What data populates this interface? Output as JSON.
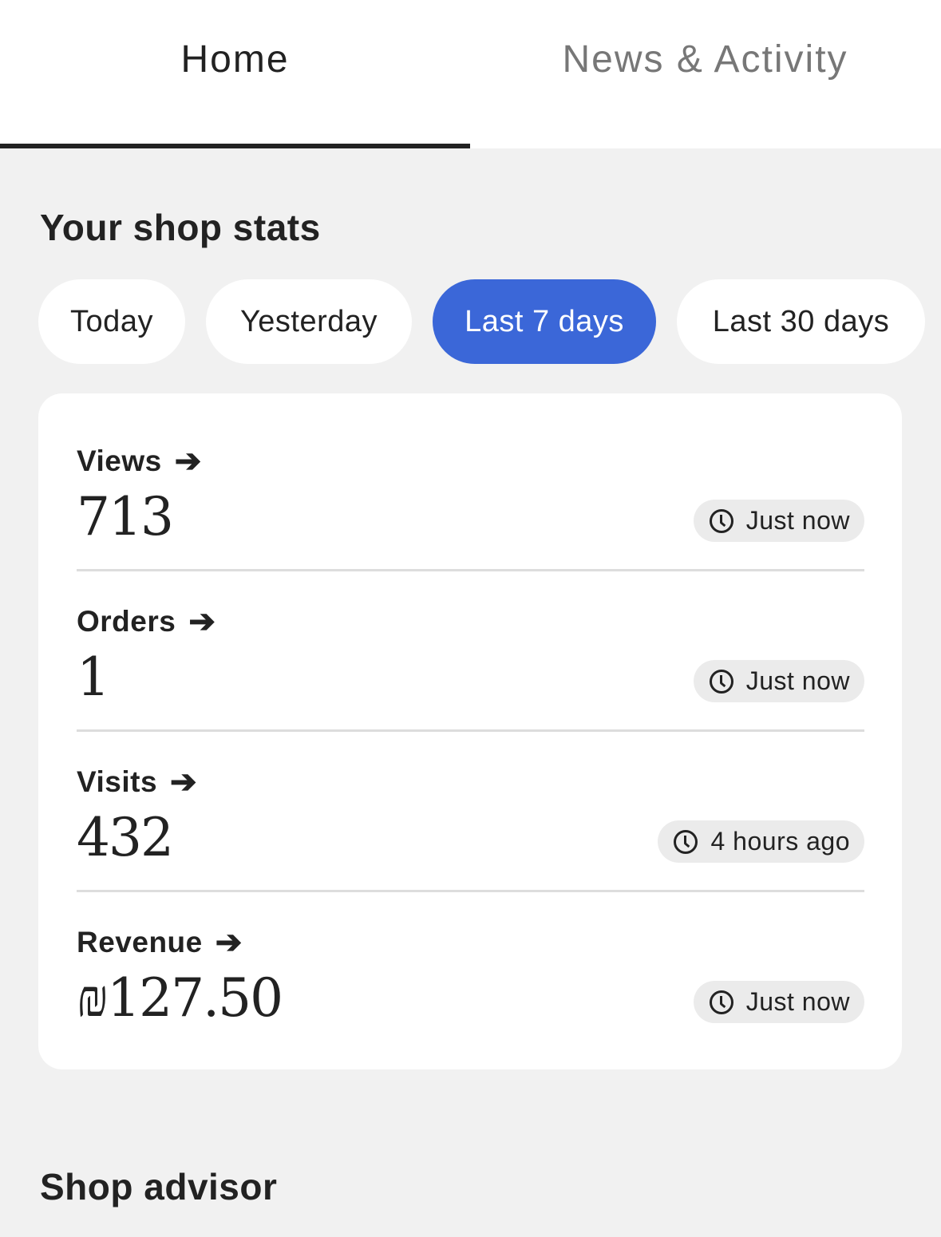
{
  "tabs": [
    {
      "label": "Home",
      "active": true
    },
    {
      "label": "News & Activity",
      "active": false
    }
  ],
  "stats": {
    "title": "Your shop stats",
    "ranges": [
      {
        "label": "Today"
      },
      {
        "label": "Yesterday"
      },
      {
        "label": "Last 7 days",
        "active": true
      },
      {
        "label": "Last 30 days"
      }
    ],
    "accent_color": "#3b67d8",
    "rows": [
      {
        "label": "Views",
        "value": "713",
        "updated": "Just now"
      },
      {
        "label": "Orders",
        "value": "1",
        "updated": "Just now"
      },
      {
        "label": "Visits",
        "value": "432",
        "updated": "4 hours ago"
      },
      {
        "label": "Revenue",
        "value": "₪127.50",
        "updated": "Just now"
      }
    ]
  },
  "advisor": {
    "title": "Shop advisor"
  }
}
